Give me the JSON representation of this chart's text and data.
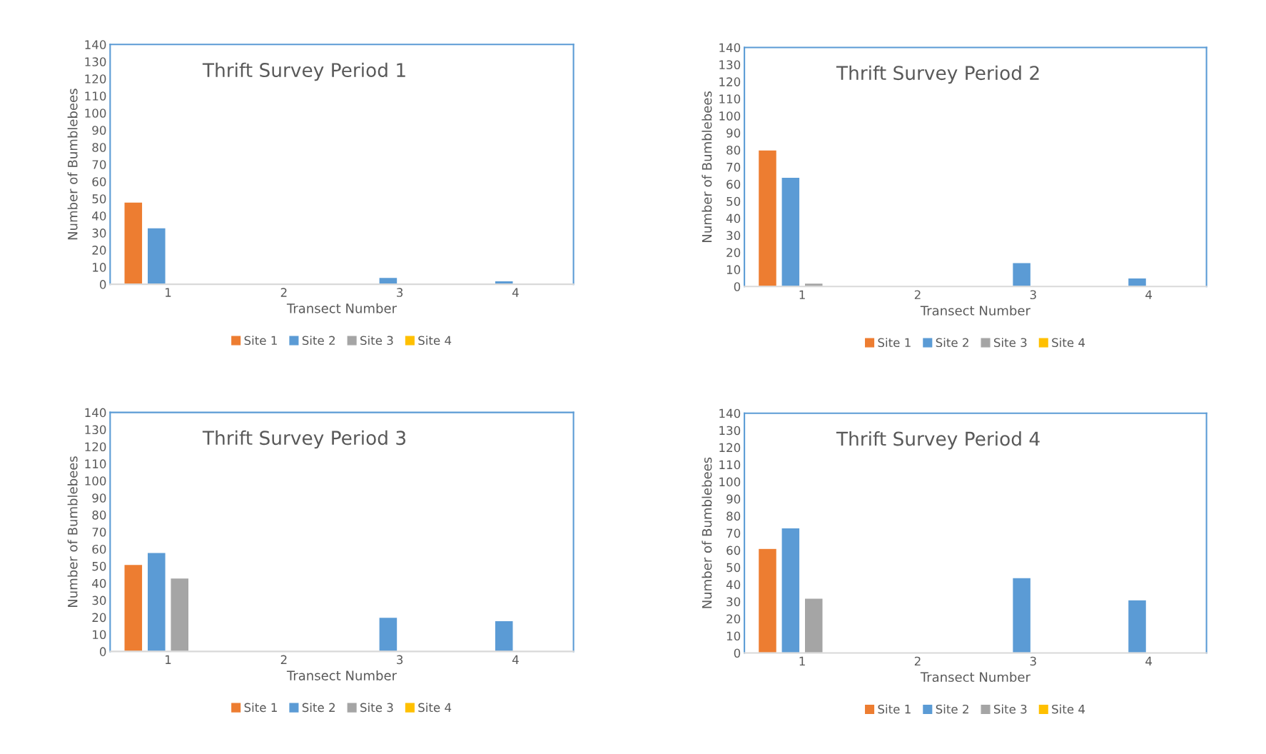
{
  "chart_data": [
    {
      "type": "bar",
      "title": "Thrift Survey Period 1",
      "xlabel": "Transect Number",
      "ylabel": "Number of Bumblebees",
      "categories": [
        "1",
        "2",
        "3",
        "4"
      ],
      "ylim": [
        0,
        140
      ],
      "yticks": [
        0,
        10,
        20,
        30,
        40,
        50,
        60,
        70,
        80,
        90,
        100,
        110,
        120,
        130,
        140
      ],
      "grid": false,
      "legend": "bottom",
      "series": [
        {
          "name": "Site 1",
          "color": "#ed7d31",
          "values": [
            48,
            null,
            null,
            null
          ]
        },
        {
          "name": "Site 2",
          "color": "#5b9bd5",
          "values": [
            33,
            null,
            4,
            2
          ]
        },
        {
          "name": "Site 3",
          "color": "#a5a5a5",
          "values": [
            null,
            null,
            null,
            null
          ]
        },
        {
          "name": "Site 4",
          "color": "#ffc000",
          "values": [
            null,
            null,
            null,
            null
          ]
        }
      ]
    },
    {
      "type": "bar",
      "title": "Thrift Survey Period 2",
      "xlabel": "Transect Number",
      "ylabel": "Number of Bumblebees",
      "categories": [
        "1",
        "2",
        "3",
        "4"
      ],
      "ylim": [
        0,
        140
      ],
      "yticks": [
        0,
        10,
        20,
        30,
        40,
        50,
        60,
        70,
        80,
        90,
        100,
        110,
        120,
        130,
        140
      ],
      "grid": false,
      "legend": "bottom",
      "series": [
        {
          "name": "Site 1",
          "color": "#ed7d31",
          "values": [
            80,
            null,
            null,
            null
          ]
        },
        {
          "name": "Site 2",
          "color": "#5b9bd5",
          "values": [
            64,
            null,
            14,
            5
          ]
        },
        {
          "name": "Site 3",
          "color": "#a5a5a5",
          "values": [
            2,
            null,
            null,
            null
          ]
        },
        {
          "name": "Site 4",
          "color": "#ffc000",
          "values": [
            null,
            null,
            null,
            null
          ]
        }
      ]
    },
    {
      "type": "bar",
      "title": "Thrift Survey Period 3",
      "xlabel": "Transect Number",
      "ylabel": "Number of Bumblebees",
      "categories": [
        "1",
        "2",
        "3",
        "4"
      ],
      "ylim": [
        0,
        140
      ],
      "yticks": [
        0,
        10,
        20,
        30,
        40,
        50,
        60,
        70,
        80,
        90,
        100,
        110,
        120,
        130,
        140
      ],
      "grid": false,
      "legend": "bottom",
      "series": [
        {
          "name": "Site 1",
          "color": "#ed7d31",
          "values": [
            51,
            null,
            null,
            null
          ]
        },
        {
          "name": "Site 2",
          "color": "#5b9bd5",
          "values": [
            58,
            null,
            20,
            18
          ]
        },
        {
          "name": "Site 3",
          "color": "#a5a5a5",
          "values": [
            43,
            null,
            null,
            null
          ]
        },
        {
          "name": "Site 4",
          "color": "#ffc000",
          "values": [
            null,
            null,
            null,
            null
          ]
        }
      ]
    },
    {
      "type": "bar",
      "title": "Thrift Survey Period 4",
      "xlabel": "Transect Number",
      "ylabel": "Number of Bumblebees",
      "categories": [
        "1",
        "2",
        "3",
        "4"
      ],
      "ylim": [
        0,
        140
      ],
      "yticks": [
        0,
        10,
        20,
        30,
        40,
        50,
        60,
        70,
        80,
        90,
        100,
        110,
        120,
        130,
        140
      ],
      "grid": false,
      "legend": "bottom",
      "series": [
        {
          "name": "Site 1",
          "color": "#ed7d31",
          "values": [
            61,
            null,
            null,
            null
          ]
        },
        {
          "name": "Site 2",
          "color": "#5b9bd5",
          "values": [
            73,
            null,
            44,
            31
          ]
        },
        {
          "name": "Site 3",
          "color": "#a5a5a5",
          "values": [
            32,
            null,
            null,
            null
          ]
        },
        {
          "name": "Site 4",
          "color": "#ffc000",
          "values": [
            null,
            null,
            null,
            null
          ]
        }
      ]
    }
  ]
}
